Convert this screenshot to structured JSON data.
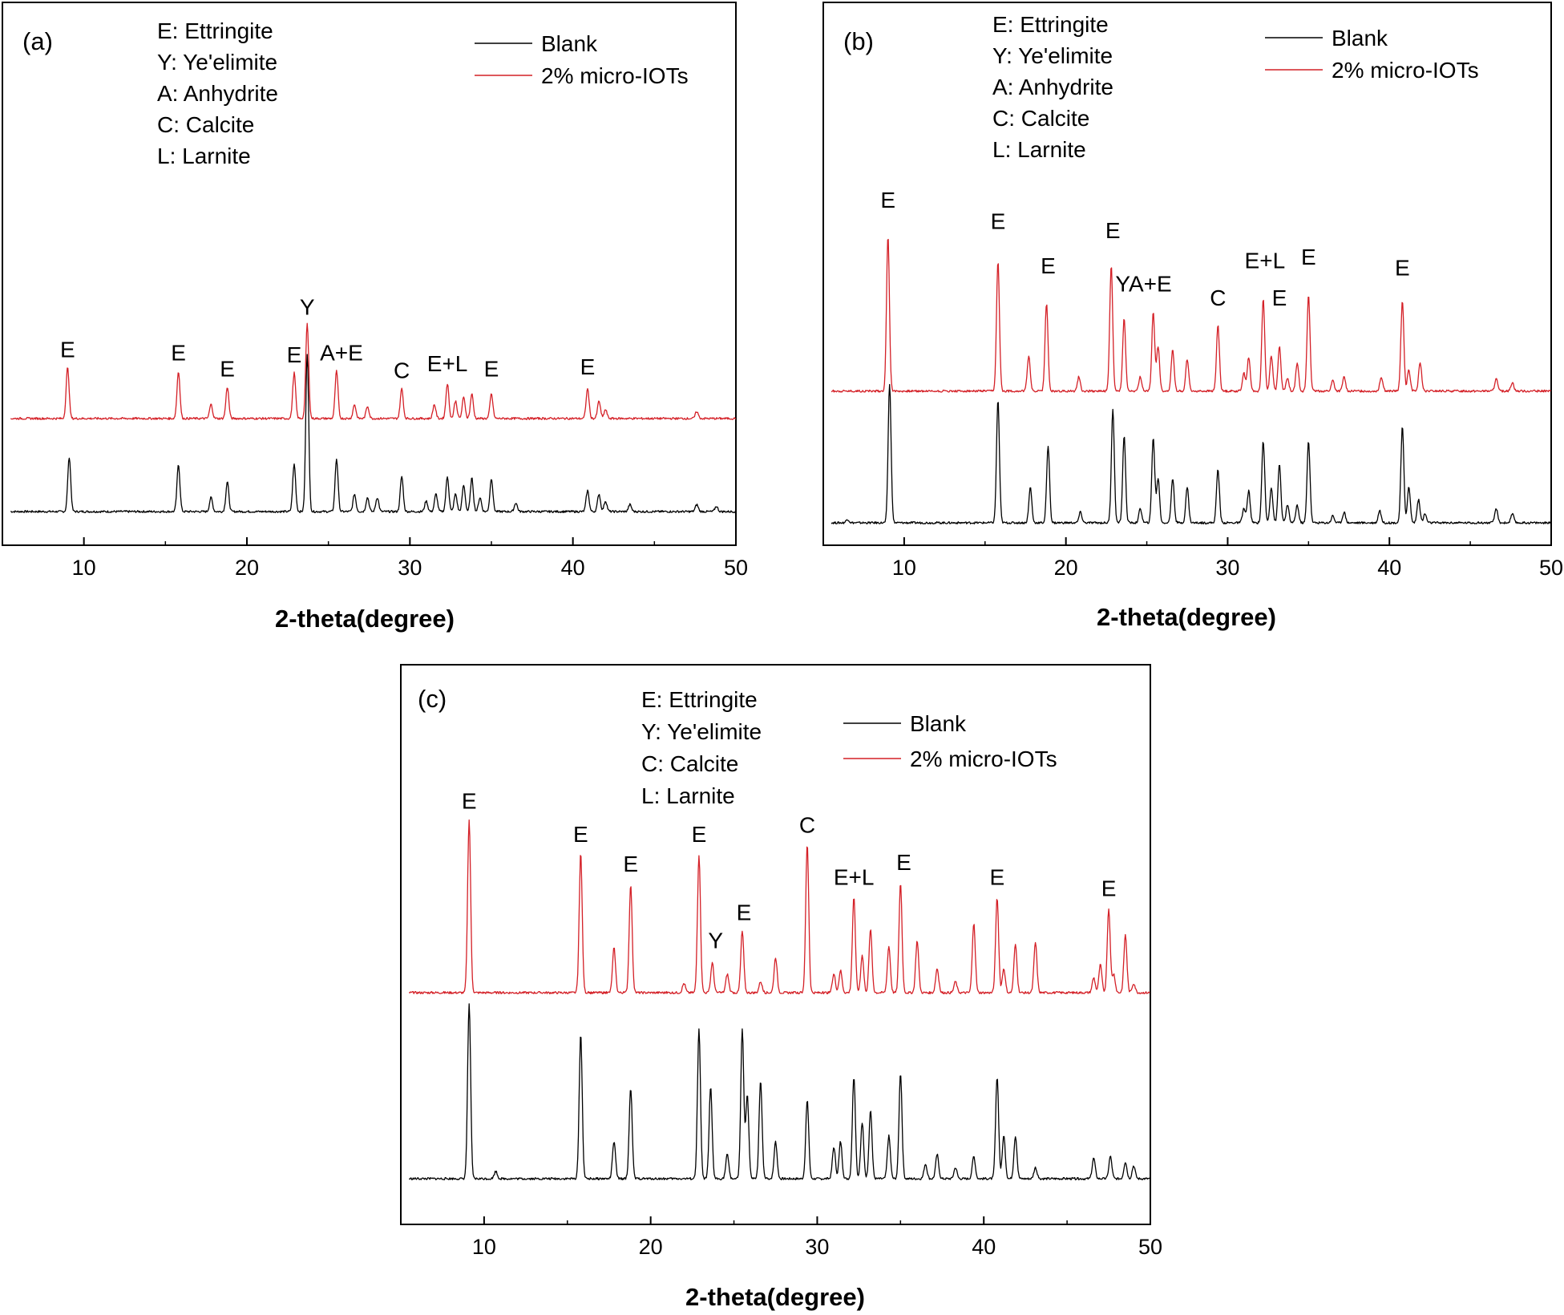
{
  "colors": {
    "blank": "#000000",
    "micro": "#d42027",
    "axis": "#000000"
  },
  "chart_data": [
    {
      "type": "line",
      "panel_label": "(a)",
      "xlabel": "2-theta(degree)",
      "xlim": [
        5,
        50
      ],
      "x_ticks": [
        "10",
        "20",
        "30",
        "40",
        "50"
      ],
      "legend": {
        "placement": "top-right",
        "entries": [
          "Blank",
          "2% micro-IOTs"
        ]
      },
      "phase_key": [
        "E: Ettringite",
        "Y: Ye'elimite",
        "A: Anhydrite",
        "C: Calcite",
        "L: Larnite"
      ],
      "series": [
        {
          "name": "Blank",
          "color_key": "blank",
          "baseline": 0.0,
          "peaks": [
            [
              9.1,
              0.31
            ],
            [
              15.8,
              0.27
            ],
            [
              17.8,
              0.08
            ],
            [
              18.8,
              0.17
            ],
            [
              22.9,
              0.27
            ],
            [
              23.7,
              0.9
            ],
            [
              25.5,
              0.3
            ],
            [
              26.6,
              0.1
            ],
            [
              27.4,
              0.08
            ],
            [
              28,
              0.08
            ],
            [
              29.5,
              0.2
            ],
            [
              31,
              0.06
            ],
            [
              31.6,
              0.1
            ],
            [
              32.3,
              0.2
            ],
            [
              32.8,
              0.1
            ],
            [
              33.3,
              0.15
            ],
            [
              33.8,
              0.19
            ],
            [
              34.3,
              0.08
            ],
            [
              35,
              0.19
            ],
            [
              36.5,
              0.05
            ],
            [
              40.9,
              0.12
            ],
            [
              41.6,
              0.1
            ],
            [
              42,
              0.06
            ],
            [
              43.5,
              0.04
            ],
            [
              47.6,
              0.04
            ],
            [
              48.8,
              0.03
            ]
          ]
        },
        {
          "name": "2% micro-IOTs",
          "color_key": "micro",
          "baseline": 0.53,
          "peaks": [
            [
              9.0,
              0.29
            ],
            [
              15.8,
              0.27
            ],
            [
              17.8,
              0.08
            ],
            [
              18.8,
              0.18
            ],
            [
              22.9,
              0.26
            ],
            [
              23.7,
              0.54
            ],
            [
              25.5,
              0.27
            ],
            [
              26.6,
              0.08
            ],
            [
              27.4,
              0.07
            ],
            [
              29.5,
              0.17
            ],
            [
              31.5,
              0.08
            ],
            [
              32.3,
              0.2
            ],
            [
              32.8,
              0.1
            ],
            [
              33.3,
              0.12
            ],
            [
              33.8,
              0.14
            ],
            [
              35,
              0.14
            ],
            [
              40.9,
              0.17
            ],
            [
              41.6,
              0.1
            ],
            [
              42,
              0.05
            ],
            [
              47.6,
              0.04
            ]
          ]
        }
      ],
      "annotations": [
        {
          "text": "E",
          "x": 9.0,
          "y": 0.88
        },
        {
          "text": "E",
          "x": 15.8,
          "y": 0.86
        },
        {
          "text": "E",
          "x": 18.8,
          "y": 0.77
        },
        {
          "text": "E",
          "x": 22.9,
          "y": 0.85
        },
        {
          "text": "Y",
          "x": 23.7,
          "y": 1.12
        },
        {
          "text": "A+E",
          "x": 25.8,
          "y": 0.86
        },
        {
          "text": "C",
          "x": 29.5,
          "y": 0.76
        },
        {
          "text": "E+L",
          "x": 32.3,
          "y": 0.8
        },
        {
          "text": "E",
          "x": 35.0,
          "y": 0.77
        },
        {
          "text": "E",
          "x": 40.9,
          "y": 0.78
        }
      ]
    },
    {
      "type": "line",
      "panel_label": "(b)",
      "xlabel": "2-theta(degree)",
      "xlim": [
        5,
        50
      ],
      "x_ticks": [
        "10",
        "20",
        "30",
        "40",
        "50"
      ],
      "legend": {
        "placement": "top-right",
        "entries": [
          "Blank",
          "2% micro-IOTs"
        ]
      },
      "phase_key": [
        "E: Ettringite",
        "Y: Ye'elimite",
        "A: Anhydrite",
        "C: Calcite",
        "L: Larnite"
      ],
      "series": [
        {
          "name": "Blank",
          "color_key": "blank",
          "baseline": 0.0,
          "peaks": [
            [
              6.5,
              0.02
            ],
            [
              9.1,
              0.78
            ],
            [
              15.8,
              0.69
            ],
            [
              17.8,
              0.2
            ],
            [
              18.9,
              0.43
            ],
            [
              20.9,
              0.06
            ],
            [
              22.9,
              0.64
            ],
            [
              23.6,
              0.49
            ],
            [
              24.6,
              0.08
            ],
            [
              25.4,
              0.48
            ],
            [
              25.7,
              0.25
            ],
            [
              26.6,
              0.25
            ],
            [
              27.5,
              0.2
            ],
            [
              29.4,
              0.3
            ],
            [
              31,
              0.08
            ],
            [
              31.3,
              0.18
            ],
            [
              32.2,
              0.46
            ],
            [
              32.7,
              0.2
            ],
            [
              33.2,
              0.33
            ],
            [
              33.7,
              0.1
            ],
            [
              34.3,
              0.1
            ],
            [
              35,
              0.46
            ],
            [
              36.5,
              0.04
            ],
            [
              37.2,
              0.06
            ],
            [
              39.4,
              0.07
            ],
            [
              40.8,
              0.54
            ],
            [
              41.2,
              0.2
            ],
            [
              41.8,
              0.13
            ],
            [
              42.2,
              0.05
            ],
            [
              46.6,
              0.08
            ],
            [
              47.6,
              0.05
            ]
          ]
        },
        {
          "name": "2% micro-IOTs",
          "color_key": "micro",
          "baseline": 0.74,
          "peaks": [
            [
              9.0,
              0.87
            ],
            [
              15.8,
              0.73
            ],
            [
              17.7,
              0.2
            ],
            [
              18.8,
              0.49
            ],
            [
              20.8,
              0.08
            ],
            [
              22.8,
              0.71
            ],
            [
              23.6,
              0.41
            ],
            [
              24.6,
              0.08
            ],
            [
              25.4,
              0.44
            ],
            [
              25.7,
              0.25
            ],
            [
              26.6,
              0.23
            ],
            [
              27.5,
              0.18
            ],
            [
              29.4,
              0.37
            ],
            [
              31,
              0.1
            ],
            [
              31.3,
              0.19
            ],
            [
              32.2,
              0.52
            ],
            [
              32.7,
              0.2
            ],
            [
              33.2,
              0.25
            ],
            [
              33.7,
              0.07
            ],
            [
              34.3,
              0.16
            ],
            [
              35,
              0.54
            ],
            [
              36.5,
              0.06
            ],
            [
              37.2,
              0.08
            ],
            [
              39.5,
              0.08
            ],
            [
              40.8,
              0.51
            ],
            [
              41.2,
              0.12
            ],
            [
              41.9,
              0.16
            ],
            [
              46.6,
              0.07
            ],
            [
              47.6,
              0.05
            ]
          ]
        }
      ],
      "annotations": [
        {
          "text": "E",
          "x": 9.0,
          "y": 1.77
        },
        {
          "text": "E",
          "x": 15.8,
          "y": 1.65
        },
        {
          "text": "E",
          "x": 18.9,
          "y": 1.4
        },
        {
          "text": "E",
          "x": 22.9,
          "y": 1.6
        },
        {
          "text": "YA+E",
          "x": 24.8,
          "y": 1.3
        },
        {
          "text": "C",
          "x": 29.4,
          "y": 1.22
        },
        {
          "text": "E+L",
          "x": 32.3,
          "y": 1.43
        },
        {
          "text": "E",
          "x": 33.2,
          "y": 1.22
        },
        {
          "text": "E",
          "x": 35.0,
          "y": 1.45
        },
        {
          "text": "E",
          "x": 40.8,
          "y": 1.39
        }
      ]
    },
    {
      "type": "line",
      "panel_label": "(c)",
      "xlabel": "2-theta(degree)",
      "xlim": [
        5,
        50
      ],
      "x_ticks": [
        "10",
        "20",
        "30",
        "40",
        "50"
      ],
      "legend": {
        "placement": "top-right",
        "entries": [
          "Blank",
          "2% micro-IOTs"
        ]
      },
      "phase_key": [
        "E: Ettringite",
        "Y: Ye'elimite",
        "C: Calcite",
        "L: Larnite"
      ],
      "series": [
        {
          "name": "Blank",
          "color_key": "blank",
          "baseline": 0.0,
          "peaks": [
            [
              9.1,
              0.94
            ],
            [
              10.7,
              0.04
            ],
            [
              15.8,
              0.78
            ],
            [
              17.8,
              0.2
            ],
            [
              18.8,
              0.49
            ],
            [
              22.9,
              0.8
            ],
            [
              23.6,
              0.49
            ],
            [
              24.6,
              0.13
            ],
            [
              25.5,
              0.8
            ],
            [
              25.8,
              0.45
            ],
            [
              26.6,
              0.53
            ],
            [
              27.5,
              0.2
            ],
            [
              29.4,
              0.42
            ],
            [
              31,
              0.17
            ],
            [
              31.4,
              0.2
            ],
            [
              32.2,
              0.55
            ],
            [
              32.7,
              0.3
            ],
            [
              33.2,
              0.37
            ],
            [
              34.3,
              0.23
            ],
            [
              35,
              0.57
            ],
            [
              36.5,
              0.08
            ],
            [
              37.2,
              0.13
            ],
            [
              38.3,
              0.06
            ],
            [
              39.4,
              0.12
            ],
            [
              40.8,
              0.55
            ],
            [
              41.2,
              0.23
            ],
            [
              41.9,
              0.23
            ],
            [
              43.1,
              0.06
            ],
            [
              46.6,
              0.11
            ],
            [
              47.6,
              0.12
            ],
            [
              48.5,
              0.09
            ],
            [
              49,
              0.07
            ]
          ]
        },
        {
          "name": "2% micro-IOTs",
          "color_key": "micro",
          "baseline": 1.0,
          "peaks": [
            [
              9.1,
              0.93
            ],
            [
              15.8,
              0.75
            ],
            [
              17.8,
              0.24
            ],
            [
              18.8,
              0.58
            ],
            [
              22.0,
              0.05
            ],
            [
              22.9,
              0.74
            ],
            [
              23.7,
              0.16
            ],
            [
              24.6,
              0.1
            ],
            [
              25.5,
              0.33
            ],
            [
              26.6,
              0.06
            ],
            [
              27.5,
              0.19
            ],
            [
              29.4,
              0.8
            ],
            [
              31,
              0.1
            ],
            [
              31.4,
              0.12
            ],
            [
              32.2,
              0.51
            ],
            [
              32.7,
              0.2
            ],
            [
              33.2,
              0.34
            ],
            [
              34.3,
              0.25
            ],
            [
              35,
              0.59
            ],
            [
              36.0,
              0.28
            ],
            [
              37.2,
              0.13
            ],
            [
              38.3,
              0.06
            ],
            [
              39.4,
              0.37
            ],
            [
              40.8,
              0.51
            ],
            [
              41.2,
              0.13
            ],
            [
              41.9,
              0.26
            ],
            [
              43.1,
              0.27
            ],
            [
              46.6,
              0.08
            ],
            [
              47.0,
              0.15
            ],
            [
              47.5,
              0.45
            ],
            [
              47.8,
              0.1
            ],
            [
              48.5,
              0.31
            ],
            [
              49,
              0.05
            ]
          ]
        }
      ],
      "annotations": [
        {
          "text": "E",
          "x": 9.1,
          "y": 1.99
        },
        {
          "text": "E",
          "x": 15.8,
          "y": 1.81
        },
        {
          "text": "E",
          "x": 18.8,
          "y": 1.65
        },
        {
          "text": "E",
          "x": 22.9,
          "y": 1.81
        },
        {
          "text": "Y",
          "x": 23.9,
          "y": 1.24
        },
        {
          "text": "E",
          "x": 25.6,
          "y": 1.39
        },
        {
          "text": "C",
          "x": 29.4,
          "y": 1.86
        },
        {
          "text": "E+L",
          "x": 32.2,
          "y": 1.58
        },
        {
          "text": "E",
          "x": 35.2,
          "y": 1.66
        },
        {
          "text": "E",
          "x": 40.8,
          "y": 1.58
        },
        {
          "text": "E",
          "x": 47.5,
          "y": 1.52
        }
      ]
    }
  ]
}
